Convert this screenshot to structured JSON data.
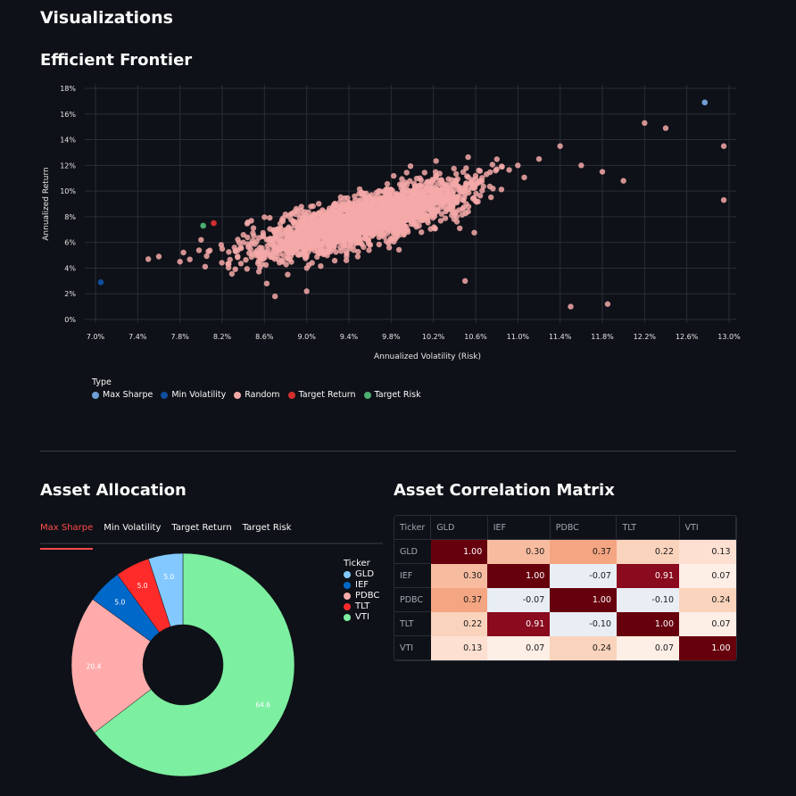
{
  "page": {
    "title": "Visualizations",
    "frontier_title": "Efficient Frontier",
    "allocation_title": "Asset Allocation",
    "correlation_title": "Asset Correlation Matrix"
  },
  "colors": {
    "background": "#0e1117",
    "accent": "#ff4b4b",
    "max_sharpe": "#6f9ed4",
    "min_volatility": "#0e4e9c",
    "random": "#f4a9a8",
    "target_return": "#d32f2f",
    "target_risk": "#4caf6f"
  },
  "tabs": [
    {
      "label": "Max Sharpe",
      "active": true
    },
    {
      "label": "Min Volatility",
      "active": false
    },
    {
      "label": "Target Return",
      "active": false
    },
    {
      "label": "Target Risk",
      "active": false
    }
  ],
  "chart_data": [
    {
      "type": "scatter",
      "title": "Efficient Frontier",
      "xlabel": "Annualized Volatility (Risk)",
      "ylabel": "Annualized Return",
      "xlim": [
        7.0,
        13.0
      ],
      "ylim": [
        0,
        18
      ],
      "x_ticks": [
        "7.0%",
        "7.4%",
        "7.8%",
        "8.2%",
        "8.6%",
        "9.0%",
        "9.4%",
        "9.8%",
        "10.2%",
        "10.6%",
        "11.0%",
        "11.4%",
        "11.8%",
        "12.2%",
        "12.6%",
        "13.0%"
      ],
      "y_ticks": [
        "0%",
        "2%",
        "4%",
        "6%",
        "8%",
        "10%",
        "12%",
        "14%",
        "16%",
        "18%"
      ],
      "grid": true,
      "legend_title": "Type",
      "legend_position": "bottom-left",
      "series": [
        {
          "name": "Max Sharpe",
          "color": "#6f9ed4",
          "points": [
            [
              12.77,
              16.9
            ]
          ]
        },
        {
          "name": "Min Volatility",
          "color": "#0e4e9c",
          "points": [
            [
              7.05,
              2.9
            ]
          ]
        },
        {
          "name": "Random",
          "color": "#f4a9a8",
          "description": "~5000 random portfolios; dense cluster centered near (9.4%, 7.5%), spreading upward-right to ~(11.4%, 14%), outliers up to (12.95%, 13.5%)",
          "sample_points": [
            [
              7.5,
              4.7
            ],
            [
              7.6,
              4.9
            ],
            [
              7.8,
              4.5
            ],
            [
              8.0,
              6.2
            ],
            [
              8.2,
              5.5
            ],
            [
              8.5,
              6.5
            ],
            [
              8.8,
              6.8
            ],
            [
              9.0,
              7.0
            ],
            [
              9.2,
              7.5
            ],
            [
              9.4,
              7.8
            ],
            [
              9.6,
              8.2
            ],
            [
              9.8,
              8.6
            ],
            [
              10.0,
              9.2
            ],
            [
              10.2,
              10.0
            ],
            [
              10.4,
              10.6
            ],
            [
              10.6,
              11.2
            ],
            [
              10.8,
              11.7
            ],
            [
              11.0,
              12.0
            ],
            [
              11.2,
              12.5
            ],
            [
              11.4,
              13.5
            ],
            [
              11.6,
              12.0
            ],
            [
              11.8,
              11.5
            ],
            [
              12.0,
              10.8
            ],
            [
              12.2,
              15.3
            ],
            [
              12.4,
              14.9
            ],
            [
              12.95,
              13.5
            ],
            [
              12.95,
              9.3
            ],
            [
              11.5,
              1.0
            ],
            [
              11.85,
              1.2
            ],
            [
              9.0,
              2.2
            ],
            [
              8.7,
              1.8
            ],
            [
              10.5,
              3.0
            ]
          ]
        },
        {
          "name": "Target Return",
          "color": "#d32f2f",
          "points": [
            [
              8.12,
              7.5
            ]
          ]
        },
        {
          "name": "Target Risk",
          "color": "#4caf6f",
          "points": [
            [
              8.02,
              7.3
            ]
          ]
        }
      ]
    },
    {
      "type": "pie",
      "title": "Asset Allocation (Max Sharpe)",
      "legend_title": "Ticker",
      "categories": [
        "GLD",
        "IEF",
        "PDBC",
        "TLT",
        "VTI"
      ],
      "values": [
        5.0,
        5.0,
        20.4,
        5.0,
        64.6
      ],
      "colors": [
        "#83c9ff",
        "#0068c9",
        "#ffabab",
        "#ff2b2b",
        "#7defa1"
      ],
      "hole": 0.36
    },
    {
      "type": "table",
      "title": "Asset Correlation Matrix",
      "columns": [
        "Ticker",
        "GLD",
        "IEF",
        "PDBC",
        "TLT",
        "VTI"
      ],
      "rows": [
        {
          "ticker": "GLD",
          "values": [
            "1.00",
            "0.30",
            "0.37",
            "0.22",
            "0.13"
          ]
        },
        {
          "ticker": "IEF",
          "values": [
            "0.30",
            "1.00",
            "-0.07",
            "0.91",
            "0.07"
          ]
        },
        {
          "ticker": "PDBC",
          "values": [
            "0.37",
            "-0.07",
            "1.00",
            "-0.10",
            "0.24"
          ]
        },
        {
          "ticker": "TLT",
          "values": [
            "0.22",
            "0.91",
            "-0.10",
            "1.00",
            "0.07"
          ]
        },
        {
          "ticker": "VTI",
          "values": [
            "0.13",
            "0.07",
            "0.24",
            "0.07",
            "1.00"
          ]
        }
      ]
    }
  ]
}
